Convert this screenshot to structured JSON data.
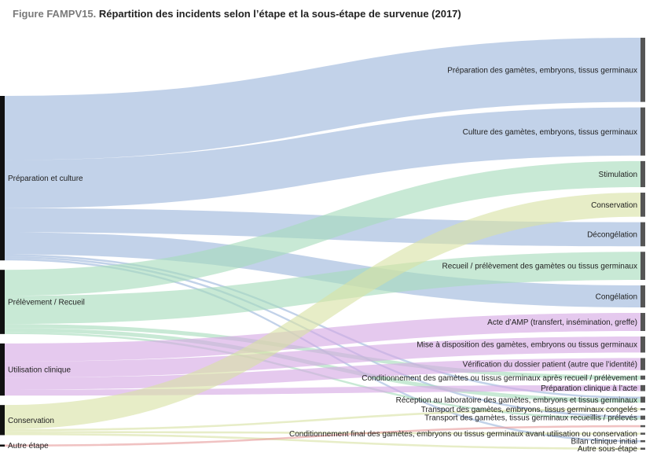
{
  "figure": {
    "prefix": "Figure FAMPV15.",
    "title": "Répartition des incidents selon l’étape et la sous-étape de survenue (2017)"
  },
  "chart_data": {
    "type": "sankey",
    "sources": [
      {
        "id": "prep",
        "label": "Préparation et culture",
        "color": "#9db6dc"
      },
      {
        "id": "prel",
        "label": "Prélèvement / Recueil",
        "color": "#a6dbbc"
      },
      {
        "id": "util",
        "label": "Utilisation clinique",
        "color": "#d5a8e3"
      },
      {
        "id": "cons",
        "label": "Conservation",
        "color": "#d9e2a5"
      },
      {
        "id": "autre",
        "label": "Autre étape",
        "color": "#e79d9d"
      }
    ],
    "targets": [
      {
        "id": "t_prep",
        "label": "Préparation des gamètes, embryons, tissus germinaux"
      },
      {
        "id": "t_cult",
        "label": "Culture des gamètes, embryons, tissus germinaux"
      },
      {
        "id": "t_stim",
        "label": "Stimulation"
      },
      {
        "id": "t_cons",
        "label": "Conservation"
      },
      {
        "id": "t_decong",
        "label": "Décongélation"
      },
      {
        "id": "t_recueil",
        "label": "Recueil / prélèvement des gamètes ou tissus germinaux"
      },
      {
        "id": "t_cong",
        "label": "Congélation"
      },
      {
        "id": "t_acte",
        "label": "Acte d’AMP (transfert, insémination, greffe)"
      },
      {
        "id": "t_mise",
        "label": "Mise à disposition des gamètes, embryons ou tissus germinaux"
      },
      {
        "id": "t_verif",
        "label": "Vérification du dossier patient (autre que l’identité)"
      },
      {
        "id": "t_condrec",
        "label": "Conditionnement des gamètes ou tissus germinaux après recueil / prélèvement"
      },
      {
        "id": "t_prepclin",
        "label": "Préparation clinique à l’acte"
      },
      {
        "id": "t_recept",
        "label": "Réception au laboratoire des gamètes, embryons et tissus germinaux"
      },
      {
        "id": "t_transcong",
        "label": "Transport des gamètes, embryons, tissus germinaux congelés"
      },
      {
        "id": "t_transrec",
        "label": "Transport des gamètes, tissus germinaux recueillis / prélevés"
      },
      {
        "id": "t_blank",
        "label": ""
      },
      {
        "id": "t_condfin",
        "label": "Conditionnement final des gamètes, embryons ou tissus germinaux avant utilisation ou conservation"
      },
      {
        "id": "t_bilan",
        "label": "Bilan clinique initial"
      },
      {
        "id": "t_autre",
        "label": "Autre sous-étape"
      }
    ],
    "links": [
      {
        "source": "prep",
        "target": "t_prep",
        "value": 32
      },
      {
        "source": "prep",
        "target": "t_cult",
        "value": 24
      },
      {
        "source": "prep",
        "target": "t_decong",
        "value": 12
      },
      {
        "source": "prep",
        "target": "t_cong",
        "value": 11
      },
      {
        "source": "prep",
        "target": "t_recept",
        "value": 1
      },
      {
        "source": "prep",
        "target": "t_transrec",
        "value": 1
      },
      {
        "source": "prep",
        "target": "t_bilan",
        "value": 1
      },
      {
        "source": "prel",
        "target": "t_stim",
        "value": 13
      },
      {
        "source": "prel",
        "target": "t_recueil",
        "value": 14
      },
      {
        "source": "prel",
        "target": "t_condrec",
        "value": 2
      },
      {
        "source": "prel",
        "target": "t_recept",
        "value": 2
      },
      {
        "source": "prel",
        "target": "t_transrec",
        "value": 1
      },
      {
        "source": "util",
        "target": "t_acte",
        "value": 9
      },
      {
        "source": "util",
        "target": "t_mise",
        "value": 8
      },
      {
        "source": "util",
        "target": "t_verif",
        "value": 6
      },
      {
        "source": "util",
        "target": "t_prepclin",
        "value": 3
      },
      {
        "source": "cons",
        "target": "t_cons",
        "value": 12
      },
      {
        "source": "cons",
        "target": "t_transcong",
        "value": 1
      },
      {
        "source": "cons",
        "target": "t_condfin",
        "value": 1
      },
      {
        "source": "cons",
        "target": "t_autre",
        "value": 1
      },
      {
        "source": "autre",
        "target": "t_blank",
        "value": 1
      }
    ]
  }
}
